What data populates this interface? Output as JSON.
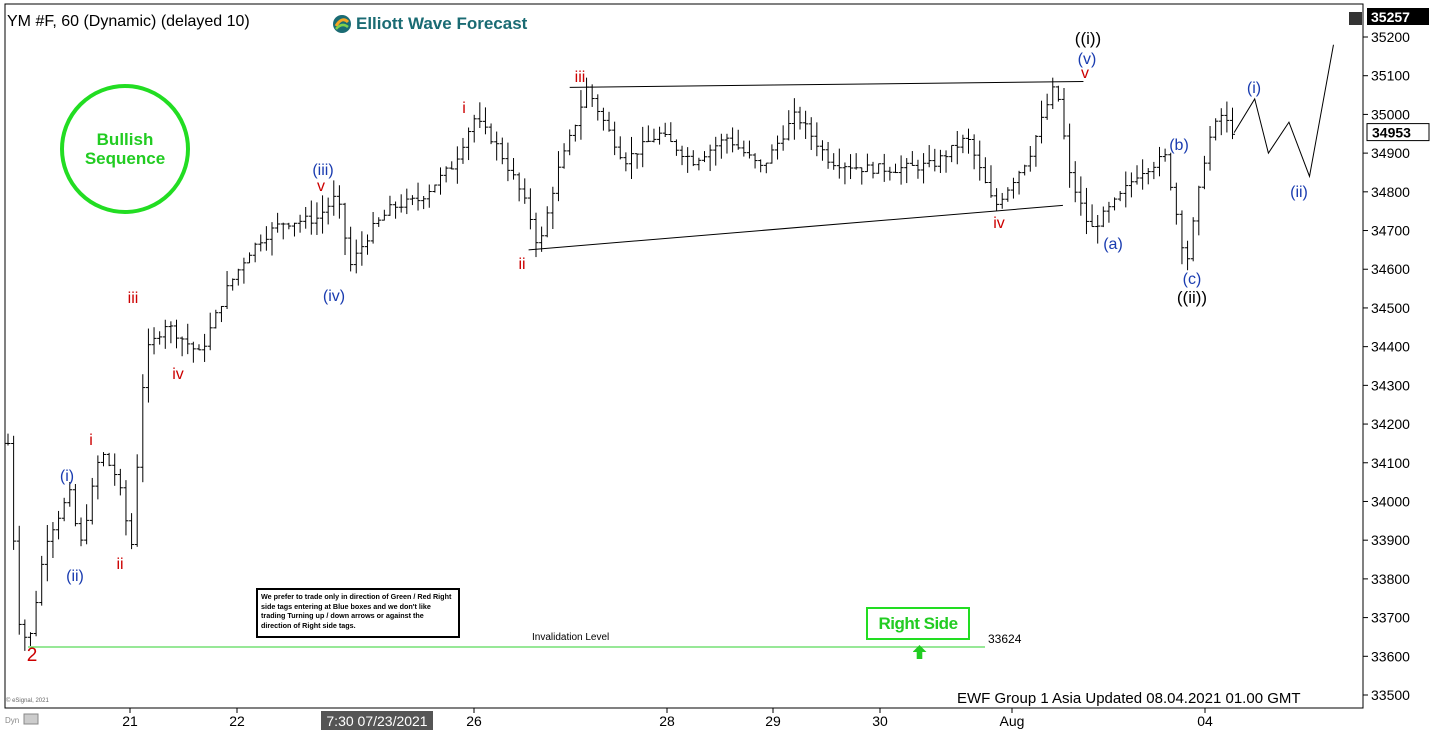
{
  "header": {
    "symbol": "YM #F, 60 (Dynamic) (delayed 10)",
    "brand": "Elliott Wave Forecast",
    "current_price": "35257",
    "last_price": "34953"
  },
  "footer": {
    "updated": "EWF Group 1 Asia Updated 08.04.2021 01.00 GMT",
    "copyright": "© eSignal, 2021",
    "cursor_time": "7:30 07/23/2021",
    "corner": "Dyn"
  },
  "badges": {
    "bullish": "Bullish\nSequence",
    "right_side": "Right Side",
    "note": "We prefer to trade only in direction of Green / Red Right side tags entering at Blue boxes and we don't like trading Turning up / down arrows or against the direction of Right side tags."
  },
  "invalidation": {
    "label": "Invalidation Level",
    "price": "33624",
    "value": 33624
  },
  "colors": {
    "green": "#22dd22",
    "red": "#cc0000",
    "blue": "#1a3cb0",
    "black": "#000000",
    "logo": "#1a6b73"
  },
  "chart_data": {
    "type": "line",
    "title": "",
    "xlabel": "",
    "ylabel": "",
    "ylim": [
      33450,
      35290
    ],
    "x_ticks": [
      "21",
      "22",
      "26",
      "28",
      "29",
      "30",
      "Aug",
      "04"
    ],
    "y_ticks": [
      33500,
      33600,
      33700,
      33800,
      33900,
      34000,
      34100,
      34200,
      34300,
      34400,
      34500,
      34600,
      34700,
      34800,
      34900,
      35000,
      35100,
      35200
    ],
    "series": [
      {
        "values": [
          [
            0.0,
            34150
          ],
          [
            0.15,
            33700
          ],
          [
            0.3,
            33624
          ],
          [
            0.55,
            33900
          ],
          [
            0.9,
            34020
          ],
          [
            1.05,
            33880
          ],
          [
            1.35,
            34130
          ],
          [
            1.6,
            34060
          ],
          [
            1.8,
            33880
          ],
          [
            2.0,
            34380
          ],
          [
            2.3,
            34460
          ],
          [
            2.8,
            34380
          ],
          [
            3.2,
            34550
          ],
          [
            3.5,
            34640
          ],
          [
            3.7,
            34680
          ],
          [
            4.0,
            34720
          ],
          [
            4.5,
            34730
          ],
          [
            4.8,
            34790
          ],
          [
            5.0,
            34610
          ],
          [
            5.3,
            34700
          ],
          [
            5.6,
            34760
          ],
          [
            6.0,
            34780
          ],
          [
            6.5,
            34870
          ],
          [
            6.8,
            34990
          ],
          [
            7.1,
            34930
          ],
          [
            7.4,
            34830
          ],
          [
            7.6,
            34750
          ],
          [
            7.75,
            34650
          ],
          [
            8.0,
            34840
          ],
          [
            8.25,
            34960
          ],
          [
            8.45,
            35070
          ],
          [
            8.7,
            34980
          ],
          [
            9.0,
            34880
          ],
          [
            9.5,
            34950
          ],
          [
            10.0,
            34880
          ],
          [
            10.5,
            34940
          ],
          [
            11.0,
            34860
          ],
          [
            11.5,
            35000
          ],
          [
            12.0,
            34880
          ],
          [
            12.5,
            34860
          ],
          [
            13.0,
            34860
          ],
          [
            13.5,
            34870
          ],
          [
            14.0,
            34940
          ],
          [
            14.4,
            34760
          ],
          [
            14.9,
            34890
          ],
          [
            15.2,
            35040
          ],
          [
            15.3,
            35080
          ],
          [
            15.5,
            34840
          ],
          [
            15.8,
            34700
          ],
          [
            16.2,
            34780
          ],
          [
            16.5,
            34850
          ],
          [
            16.9,
            34890
          ],
          [
            17.2,
            34610
          ],
          [
            17.5,
            34920
          ],
          [
            17.7,
            35000
          ],
          [
            17.9,
            34953
          ],
          [
            18.2,
            35040
          ],
          [
            18.4,
            34900
          ],
          [
            18.7,
            34980
          ],
          [
            19.0,
            34840
          ],
          [
            19.35,
            35180
          ]
        ]
      }
    ],
    "wave_labels": [
      {
        "text": "2",
        "color": "red"
      },
      {
        "text": "(i)",
        "color": "blue"
      },
      {
        "text": "(ii)",
        "color": "blue"
      },
      {
        "text": "i",
        "color": "red"
      },
      {
        "text": "ii",
        "color": "red"
      },
      {
        "text": "iii",
        "color": "red"
      },
      {
        "text": "iv",
        "color": "red"
      },
      {
        "text": "(iii)",
        "color": "blue"
      },
      {
        "text": "v",
        "color": "red"
      },
      {
        "text": "(iv)",
        "color": "blue"
      },
      {
        "text": "i",
        "color": "red"
      },
      {
        "text": "ii",
        "color": "red"
      },
      {
        "text": "iii",
        "color": "red"
      },
      {
        "text": "iv",
        "color": "red"
      },
      {
        "text": "((i))",
        "color": "black"
      },
      {
        "text": "(v)",
        "color": "blue"
      },
      {
        "text": "v",
        "color": "red"
      },
      {
        "text": "(a)",
        "color": "blue"
      },
      {
        "text": "(b)",
        "color": "blue"
      },
      {
        "text": "(c)",
        "color": "blue"
      },
      {
        "text": "((ii))",
        "color": "black"
      },
      {
        "text": "(i)",
        "color": "blue"
      },
      {
        "text": "(ii)",
        "color": "blue"
      }
    ],
    "grid": false,
    "legend": "none"
  }
}
